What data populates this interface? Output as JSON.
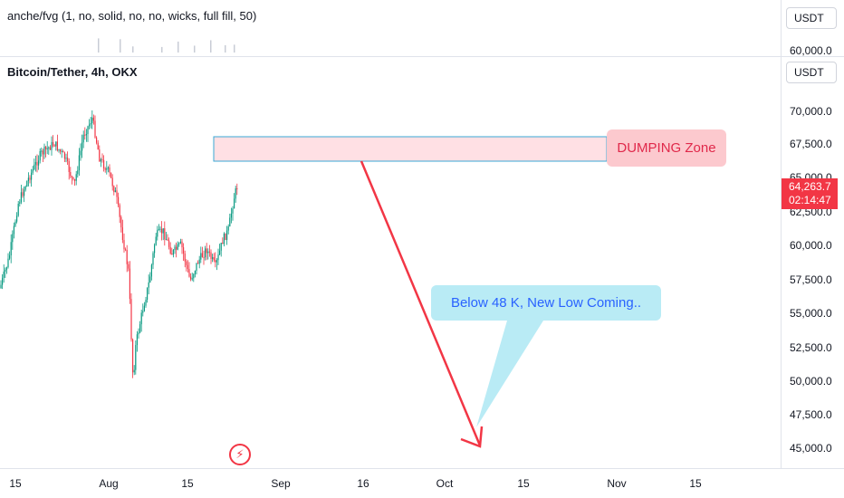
{
  "top_pane": {
    "legend": "anche/fvg (1, no, solid, no, no, wicks, full fill, 50)",
    "unit_button": "USDT",
    "price_labels": [
      "60,000.0"
    ]
  },
  "main_pane": {
    "legend": "Bitcoin/Tether, 4h, OKX",
    "unit_button": "USDT",
    "price_labels": [
      "70,000.0",
      "67,500.0",
      "65,000.0",
      "62,500.0",
      "60,000.0",
      "57,500.0",
      "55,000.0",
      "52,500.0",
      "50,000.0",
      "47,500.0",
      "45,000.0"
    ],
    "last_price": {
      "value": "64,263.7",
      "countdown": "02:14:47",
      "color": "#f23645"
    }
  },
  "time_axis": {
    "labels": [
      "15",
      "Aug",
      "15",
      "Sep",
      "16",
      "Oct",
      "15",
      "Nov",
      "15"
    ]
  },
  "annotations": {
    "dumping_zone": {
      "label": "DUMPING Zone",
      "color": "#fcc9ce",
      "text_color": "#e0284a"
    },
    "callout": {
      "label": "Below 48 K, New Low Coming..",
      "color": "#b9ebf5",
      "text_color": "#2962ff"
    },
    "arrow_color": "#f23645"
  },
  "watermark_icon": "tradingview-lightning-icon",
  "colors": {
    "up": "#089981",
    "down": "#f23645"
  }
}
